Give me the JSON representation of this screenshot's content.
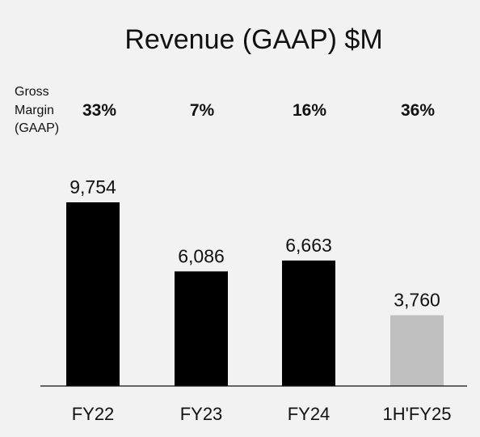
{
  "chart_data": {
    "type": "bar",
    "title": "Revenue (GAAP) $M",
    "categories": [
      "FY22",
      "FY23",
      "FY24",
      "1H'FY25"
    ],
    "values": [
      9754,
      6086,
      6663,
      3760
    ],
    "value_labels": [
      "9,754",
      "6,086",
      "6,663",
      "3,760"
    ],
    "bar_colors": [
      "#000000",
      "#000000",
      "#000000",
      "#c0c0c0"
    ],
    "gross_margin_label": [
      "Gross",
      "Margin",
      "(GAAP)"
    ],
    "gross_margin_values": [
      "33%",
      "7%",
      "16%",
      "36%"
    ],
    "xlabel": "",
    "ylabel": "",
    "ylim": [
      0,
      10000
    ],
    "grid": false
  }
}
